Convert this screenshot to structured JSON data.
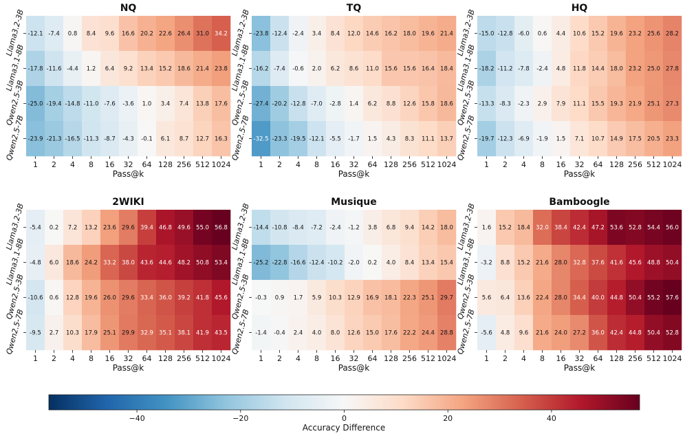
{
  "colorbar": {
    "label": "Accuracy Difference",
    "min": -57,
    "max": 57,
    "ticks": [
      -40,
      -20,
      0,
      20,
      40
    ],
    "colormap": "RdBu_r",
    "stops": [
      "#053061",
      "#2166ac",
      "#4393c3",
      "#92c5de",
      "#d1e5f0",
      "#f7f7f7",
      "#fddbc7",
      "#f4a582",
      "#d6604d",
      "#b2182b",
      "#67001f"
    ]
  },
  "chart_data": [
    {
      "type": "heatmap",
      "title": "NQ",
      "xlabel": "Pass@k",
      "x": [
        "1",
        "2",
        "4",
        "8",
        "16",
        "32",
        "64",
        "128",
        "256",
        "512",
        "1024"
      ],
      "y": [
        "Llama3.2-3B",
        "Llama3.1-8B",
        "Qwen2.5-3B",
        "Qwen2.5-7B"
      ],
      "values": [
        [
          -12.1,
          -7.4,
          0.8,
          8.4,
          9.6,
          16.6,
          20.2,
          22.6,
          26.4,
          31.0,
          34.2
        ],
        [
          -17.8,
          -11.6,
          -4.4,
          1.2,
          6.4,
          9.2,
          13.4,
          15.2,
          18.6,
          21.4,
          23.8
        ],
        [
          -25.0,
          -19.4,
          -14.8,
          -11.0,
          -7.6,
          -3.6,
          1.0,
          3.4,
          7.4,
          13.8,
          17.6
        ],
        [
          -23.9,
          -21.3,
          -16.5,
          -11.3,
          -8.7,
          -4.3,
          -0.1,
          6.1,
          8.7,
          12.7,
          16.3
        ]
      ]
    },
    {
      "type": "heatmap",
      "title": "TQ",
      "xlabel": "Pass@k",
      "x": [
        "1",
        "2",
        "4",
        "8",
        "16",
        "32",
        "64",
        "128",
        "256",
        "512",
        "1024"
      ],
      "y": [
        "Llama3.2-3B",
        "Llama3.1-8B",
        "Qwen2.5-3B",
        "Qwen2.5-7B"
      ],
      "values": [
        [
          -23.8,
          -12.4,
          -2.4,
          3.4,
          8.4,
          12.0,
          14.6,
          16.2,
          18.0,
          19.6,
          21.4
        ],
        [
          -16.2,
          -7.4,
          -0.6,
          2.0,
          6.2,
          8.6,
          11.0,
          15.6,
          15.6,
          16.4,
          18.4
        ],
        [
          -27.4,
          -20.2,
          -12.8,
          -7.0,
          -2.8,
          1.4,
          6.2,
          8.8,
          12.6,
          15.8,
          18.6
        ],
        [
          -32.5,
          -23.3,
          -19.5,
          -12.1,
          -5.5,
          -1.7,
          1.5,
          4.3,
          8.3,
          11.1,
          13.7
        ]
      ]
    },
    {
      "type": "heatmap",
      "title": "HQ",
      "xlabel": "Pass@k",
      "x": [
        "1",
        "2",
        "4",
        "8",
        "16",
        "32",
        "64",
        "128",
        "256",
        "512",
        "1024"
      ],
      "y": [
        "Llama3.2-3B",
        "Llama3.1-8B",
        "Qwen2.5-3B",
        "Qwen2.5-7B"
      ],
      "values": [
        [
          -15.0,
          -12.8,
          -6.0,
          0.6,
          4.4,
          10.6,
          15.2,
          19.6,
          23.2,
          25.6,
          28.2
        ],
        [
          -18.2,
          -11.2,
          -7.8,
          -2.4,
          4.8,
          11.8,
          14.4,
          18.0,
          23.2,
          25.0,
          27.8
        ],
        [
          -13.3,
          -8.3,
          -2.3,
          2.9,
          7.9,
          11.1,
          15.5,
          19.3,
          21.9,
          25.1,
          27.3
        ],
        [
          -19.7,
          -12.3,
          -6.9,
          -1.9,
          1.5,
          7.1,
          10.7,
          14.9,
          17.5,
          20.5,
          23.3
        ]
      ]
    },
    {
      "type": "heatmap",
      "title": "2WIKI",
      "xlabel": "Pass@k",
      "x": [
        "1",
        "2",
        "4",
        "8",
        "16",
        "32",
        "64",
        "128",
        "256",
        "512",
        "1024"
      ],
      "y": [
        "Llama3.2-3B",
        "Llama3.1-8B",
        "Qwen2.5-3B",
        "Qwen2.5-7B"
      ],
      "values": [
        [
          -5.4,
          0.2,
          7.2,
          13.2,
          23.6,
          29.6,
          39.4,
          46.8,
          49.6,
          55.0,
          56.8
        ],
        [
          -4.8,
          6.0,
          18.6,
          24.2,
          33.2,
          38.0,
          43.6,
          44.6,
          48.2,
          50.8,
          53.4
        ],
        [
          -10.6,
          0.6,
          12.8,
          19.6,
          26.0,
          29.6,
          33.4,
          36.0,
          39.2,
          41.8,
          45.6
        ],
        [
          -9.5,
          2.7,
          10.3,
          17.9,
          25.1,
          29.9,
          32.9,
          35.1,
          38.1,
          41.9,
          43.5
        ]
      ]
    },
    {
      "type": "heatmap",
      "title": "Musique",
      "xlabel": "Pass@k",
      "x": [
        "1",
        "2",
        "4",
        "8",
        "16",
        "32",
        "64",
        "128",
        "256",
        "512",
        "1024"
      ],
      "y": [
        "Llama3.2-3B",
        "Llama3.1-8B",
        "Qwen2.5-3B",
        "Qwen2.5-7B"
      ],
      "values": [
        [
          -14.4,
          -10.8,
          -8.4,
          -7.2,
          -2.4,
          -1.2,
          3.8,
          6.8,
          9.4,
          14.2,
          18.0
        ],
        [
          -25.2,
          -22.8,
          -16.6,
          -12.4,
          -10.2,
          -2.0,
          0.2,
          4.0,
          8.4,
          13.4,
          15.4
        ],
        [
          -0.3,
          0.9,
          1.7,
          5.9,
          10.3,
          12.9,
          16.9,
          18.1,
          22.3,
          25.1,
          29.7
        ],
        [
          -1.4,
          -0.4,
          2.4,
          4.0,
          8.0,
          12.6,
          15.0,
          17.6,
          22.2,
          24.4,
          28.8
        ]
      ]
    },
    {
      "type": "heatmap",
      "title": "Bamboogle",
      "xlabel": "Pass@k",
      "x": [
        "1",
        "2",
        "4",
        "8",
        "16",
        "32",
        "64",
        "128",
        "256",
        "512",
        "1024"
      ],
      "y": [
        "Llama3.2-3B",
        "Llama3.1-8B",
        "Qwen2.5-3B",
        "Qwen2.5-7B"
      ],
      "values": [
        [
          1.6,
          15.2,
          18.4,
          32.0,
          38.4,
          42.4,
          47.2,
          53.6,
          52.8,
          54.4,
          56.0
        ],
        [
          -3.2,
          8.8,
          15.2,
          21.6,
          28.0,
          32.8,
          37.6,
          41.6,
          45.6,
          48.8,
          50.4
        ],
        [
          5.6,
          6.4,
          13.6,
          22.4,
          28.0,
          34.4,
          40.0,
          44.8,
          50.4,
          55.2,
          57.6
        ],
        [
          -5.6,
          4.8,
          9.6,
          21.6,
          24.0,
          27.2,
          36.0,
          42.4,
          44.8,
          50.4,
          52.8
        ]
      ]
    }
  ]
}
